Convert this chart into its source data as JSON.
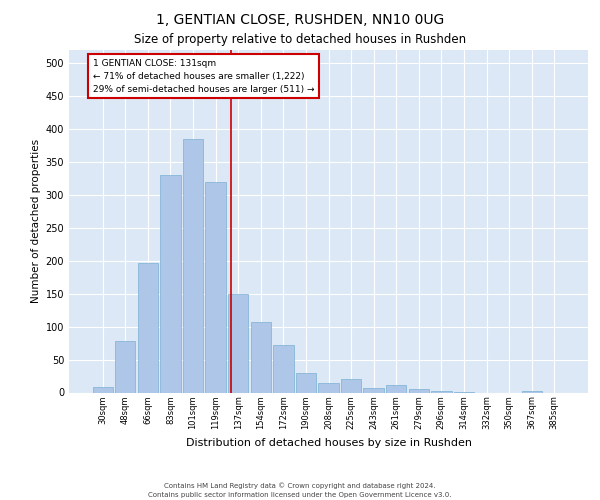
{
  "title1": "1, GENTIAN CLOSE, RUSHDEN, NN10 0UG",
  "title2": "Size of property relative to detached houses in Rushden",
  "xlabel": "Distribution of detached houses by size in Rushden",
  "ylabel": "Number of detached properties",
  "footer1": "Contains HM Land Registry data © Crown copyright and database right 2024.",
  "footer2": "Contains public sector information licensed under the Open Government Licence v3.0.",
  "annotation_line1": "1 GENTIAN CLOSE: 131sqm",
  "annotation_line2": "← 71% of detached houses are smaller (1,222)",
  "annotation_line3": "29% of semi-detached houses are larger (511) →",
  "bar_labels": [
    "30sqm",
    "48sqm",
    "66sqm",
    "83sqm",
    "101sqm",
    "119sqm",
    "137sqm",
    "154sqm",
    "172sqm",
    "190sqm",
    "208sqm",
    "225sqm",
    "243sqm",
    "261sqm",
    "279sqm",
    "296sqm",
    "314sqm",
    "332sqm",
    "350sqm",
    "367sqm",
    "385sqm"
  ],
  "bar_values": [
    8,
    78,
    197,
    330,
    385,
    320,
    150,
    107,
    72,
    30,
    15,
    20,
    7,
    12,
    5,
    3,
    1,
    0,
    0,
    2,
    0
  ],
  "bar_color": "#aec6e8",
  "bar_edge_color": "#7ab0d4",
  "vline_color": "#cc0000",
  "annotation_box_color": "#cc0000",
  "background_color": "#dce8f5",
  "fig_background": "#ffffff",
  "ylim": [
    0,
    520
  ],
  "yticks": [
    0,
    50,
    100,
    150,
    200,
    250,
    300,
    350,
    400,
    450,
    500
  ],
  "title1_fontsize": 10,
  "title2_fontsize": 8.5,
  "ylabel_fontsize": 7.5,
  "xlabel_fontsize": 8,
  "tick_fontsize": 7,
  "xtick_fontsize": 6,
  "footer_fontsize": 5,
  "ann_fontsize": 6.5
}
